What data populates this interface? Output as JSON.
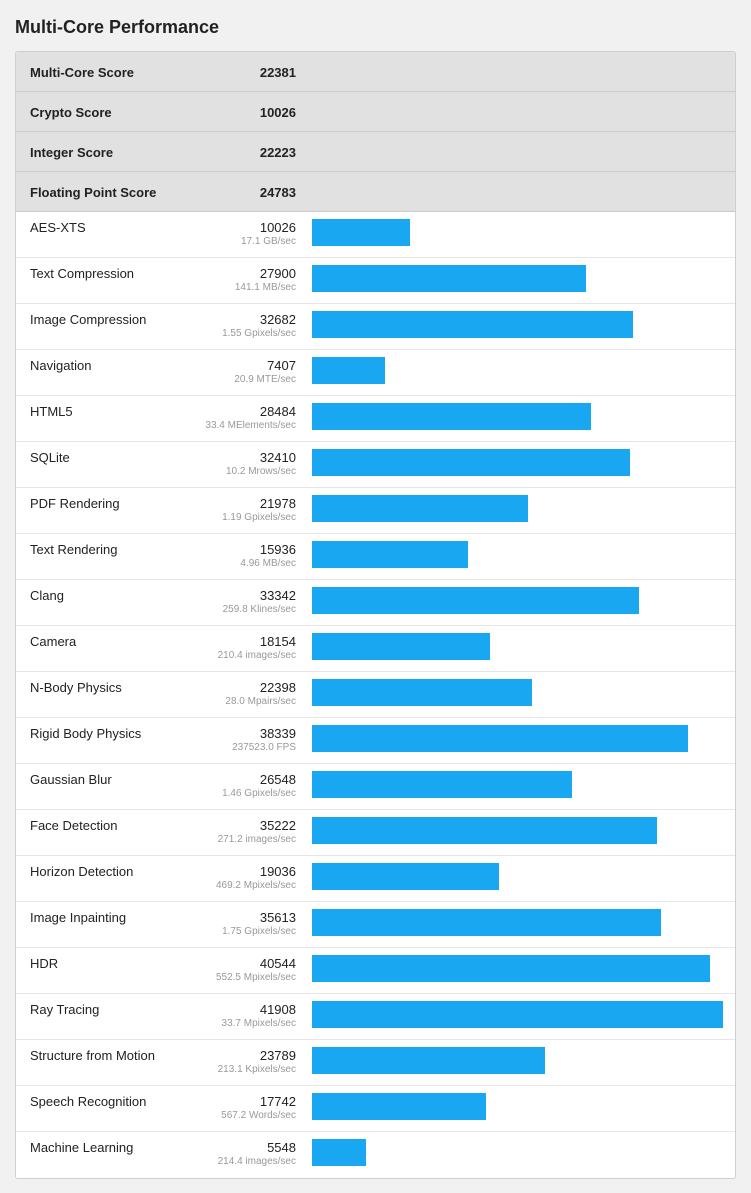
{
  "title": "Multi-Core Performance",
  "scale_max": 41908,
  "bar_color": "#1aa7f2",
  "scores": [
    {
      "label": "Multi-Core Score",
      "value": "22381"
    },
    {
      "label": "Crypto Score",
      "value": "10026"
    },
    {
      "label": "Integer Score",
      "value": "22223"
    },
    {
      "label": "Floating Point Score",
      "value": "24783"
    }
  ],
  "benchmarks": [
    {
      "label": "AES-XTS",
      "score": 10026,
      "rate": "17.1 GB/sec"
    },
    {
      "label": "Text Compression",
      "score": 27900,
      "rate": "141.1 MB/sec"
    },
    {
      "label": "Image Compression",
      "score": 32682,
      "rate": "1.55 Gpixels/sec"
    },
    {
      "label": "Navigation",
      "score": 7407,
      "rate": "20.9 MTE/sec"
    },
    {
      "label": "HTML5",
      "score": 28484,
      "rate": "33.4 MElements/sec"
    },
    {
      "label": "SQLite",
      "score": 32410,
      "rate": "10.2 Mrows/sec"
    },
    {
      "label": "PDF Rendering",
      "score": 21978,
      "rate": "1.19 Gpixels/sec"
    },
    {
      "label": "Text Rendering",
      "score": 15936,
      "rate": "4.96 MB/sec"
    },
    {
      "label": "Clang",
      "score": 33342,
      "rate": "259.8 Klines/sec"
    },
    {
      "label": "Camera",
      "score": 18154,
      "rate": "210.4 images/sec"
    },
    {
      "label": "N-Body Physics",
      "score": 22398,
      "rate": "28.0 Mpairs/sec"
    },
    {
      "label": "Rigid Body Physics",
      "score": 38339,
      "rate": "237523.0 FPS"
    },
    {
      "label": "Gaussian Blur",
      "score": 26548,
      "rate": "1.46 Gpixels/sec"
    },
    {
      "label": "Face Detection",
      "score": 35222,
      "rate": "271.2 images/sec"
    },
    {
      "label": "Horizon Detection",
      "score": 19036,
      "rate": "469.2 Mpixels/sec"
    },
    {
      "label": "Image Inpainting",
      "score": 35613,
      "rate": "1.75 Gpixels/sec"
    },
    {
      "label": "HDR",
      "score": 40544,
      "rate": "552.5 Mpixels/sec"
    },
    {
      "label": "Ray Tracing",
      "score": 41908,
      "rate": "33.7 Mpixels/sec"
    },
    {
      "label": "Structure from Motion",
      "score": 23789,
      "rate": "213.1 Kpixels/sec"
    },
    {
      "label": "Speech Recognition",
      "score": 17742,
      "rate": "567.2 Words/sec"
    },
    {
      "label": "Machine Learning",
      "score": 5548,
      "rate": "214.4 images/sec"
    }
  ]
}
